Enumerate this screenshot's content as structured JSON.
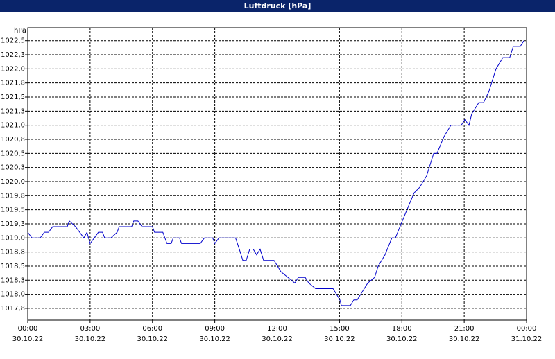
{
  "chart_data": {
    "type": "line",
    "title": "Luftdruck [hPa]",
    "ylabel": "hPa",
    "x": [
      0,
      0.2,
      0.6,
      0.8,
      1.0,
      1.2,
      1.9,
      2.0,
      2.3,
      2.5,
      2.7,
      2.85,
      3.0,
      3.2,
      3.4,
      3.6,
      3.7,
      4.0,
      4.3,
      4.4,
      5.0,
      5.1,
      5.3,
      5.5,
      6.0,
      6.1,
      6.5,
      6.7,
      6.9,
      7.0,
      7.3,
      7.4,
      8.3,
      8.5,
      8.9,
      9.0,
      9.2,
      10.0,
      10.18,
      10.35,
      10.51,
      10.68,
      10.85,
      11.01,
      11.18,
      11.35,
      11.85,
      12.02,
      12.18,
      12.52,
      12.85,
      13.02,
      13.35,
      13.52,
      13.85,
      14.69,
      15.02,
      15.09,
      15.52,
      15.69,
      15.85,
      16.19,
      16.36,
      16.69,
      16.86,
      17.19,
      17.52,
      17.69,
      18.02,
      18.36,
      18.59,
      18.86,
      19.19,
      19.53,
      19.69,
      20.03,
      20.36,
      20.86,
      21.03,
      21.23,
      21.36,
      21.7,
      21.93,
      22.19,
      22.53,
      22.86,
      23.19,
      23.36,
      23.7,
      23.87
    ],
    "series": [
      {
        "name": "Luftdruck",
        "color": "#0000cc",
        "values": [
          1019.1,
          1019.0,
          1019.0,
          1019.1,
          1019.1,
          1019.2,
          1019.2,
          1019.3,
          1019.2,
          1019.1,
          1019.0,
          1019.1,
          1018.9,
          1019.0,
          1019.1,
          1019.1,
          1019.0,
          1019.0,
          1019.1,
          1019.2,
          1019.2,
          1019.3,
          1019.3,
          1019.2,
          1019.2,
          1019.1,
          1019.1,
          1018.9,
          1018.9,
          1019.0,
          1019.0,
          1018.9,
          1018.9,
          1019.0,
          1019.0,
          1018.9,
          1019.0,
          1019.0,
          1018.8,
          1018.6,
          1018.6,
          1018.8,
          1018.8,
          1018.7,
          1018.8,
          1018.6,
          1018.6,
          1018.5,
          1018.4,
          1018.3,
          1018.2,
          1018.3,
          1018.3,
          1018.2,
          1018.1,
          1018.1,
          1017.9,
          1017.8,
          1017.8,
          1017.9,
          1017.9,
          1018.1,
          1018.2,
          1018.3,
          1018.5,
          1018.7,
          1019.0,
          1019.0,
          1019.3,
          1019.6,
          1019.8,
          1019.9,
          1020.1,
          1020.5,
          1020.5,
          1020.8,
          1021.0,
          1021.0,
          1021.1,
          1021.0,
          1021.2,
          1021.4,
          1021.4,
          1021.6,
          1022.0,
          1022.2,
          1022.2,
          1022.4,
          1022.4,
          1022.5
        ]
      }
    ],
    "xlim": [
      0,
      24
    ],
    "xticks": [
      {
        "value": 0,
        "label": "00:00"
      },
      {
        "value": 3,
        "label": "03:00"
      },
      {
        "value": 6,
        "label": "06:00"
      },
      {
        "value": 9,
        "label": "09:00"
      },
      {
        "value": 12,
        "label": "12:00"
      },
      {
        "value": 15,
        "label": "15:00"
      },
      {
        "value": 18,
        "label": "18:00"
      },
      {
        "value": 21,
        "label": "21:00"
      },
      {
        "value": 24,
        "label": "00:00"
      }
    ],
    "xtick_dates": [
      "30.10.22",
      "30.10.22",
      "30.10.22",
      "30.10.22",
      "30.10.22",
      "30.10.22",
      "30.10.22",
      "30.10.22",
      "31.10.22"
    ],
    "ylim": [
      1017.54,
      1022.73
    ],
    "yticks": [
      {
        "value": 1017.75,
        "label": "1017,8"
      },
      {
        "value": 1018.0,
        "label": "1018,0"
      },
      {
        "value": 1018.25,
        "label": "1018,3"
      },
      {
        "value": 1018.5,
        "label": "1018,5"
      },
      {
        "value": 1018.75,
        "label": "1018,8"
      },
      {
        "value": 1019.0,
        "label": "1019,0"
      },
      {
        "value": 1019.25,
        "label": "1019,3"
      },
      {
        "value": 1019.5,
        "label": "1019,5"
      },
      {
        "value": 1019.75,
        "label": "1019,8"
      },
      {
        "value": 1020.0,
        "label": "1020,0"
      },
      {
        "value": 1020.25,
        "label": "1020,3"
      },
      {
        "value": 1020.5,
        "label": "1020,5"
      },
      {
        "value": 1020.75,
        "label": "1020,8"
      },
      {
        "value": 1021.0,
        "label": "1021,0"
      },
      {
        "value": 1021.25,
        "label": "1021,3"
      },
      {
        "value": 1021.5,
        "label": "1021,5"
      },
      {
        "value": 1021.75,
        "label": "1021,8"
      },
      {
        "value": 1022.0,
        "label": "1022,0"
      },
      {
        "value": 1022.25,
        "label": "1022,3"
      },
      {
        "value": 1022.5,
        "label": "1022,5"
      }
    ],
    "grid": true
  }
}
